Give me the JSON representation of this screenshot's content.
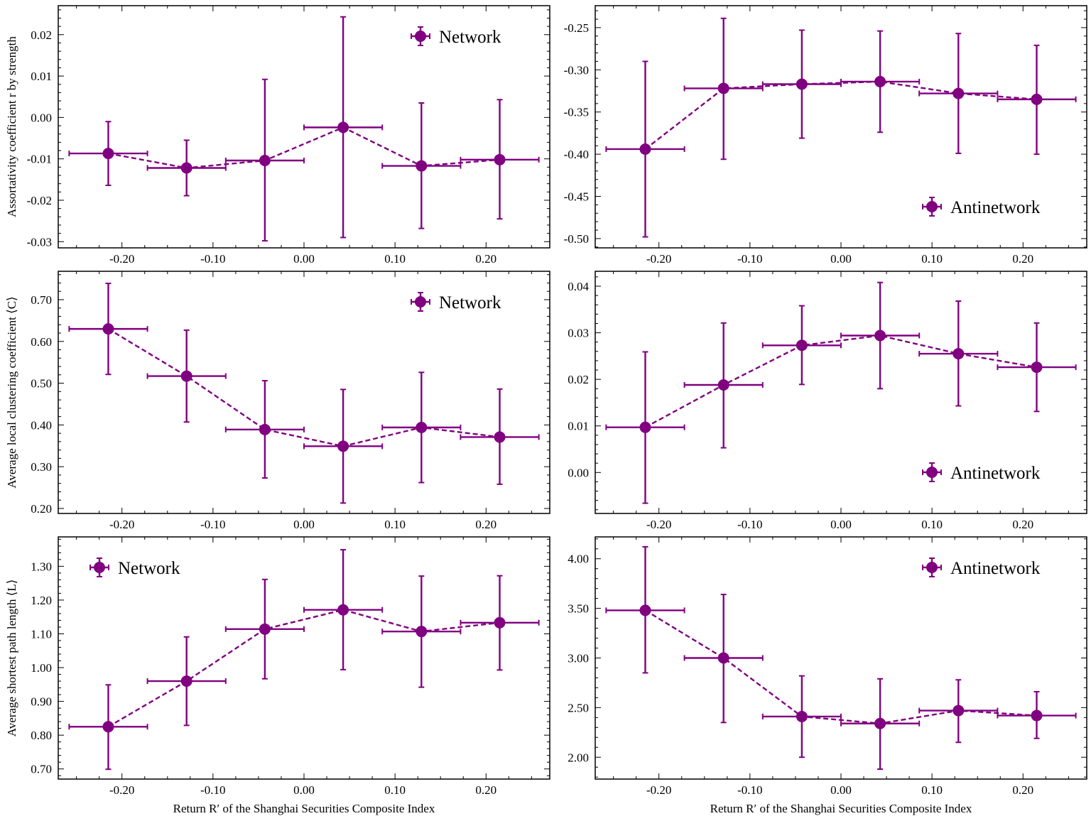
{
  "chart_data": [
    {
      "type": "scatter",
      "x": [
        -0.215,
        -0.129,
        -0.043,
        0.043,
        0.129,
        0.215
      ],
      "x_err": 0.043,
      "y": [
        -0.0087,
        -0.0122,
        -0.0104,
        -0.0024,
        -0.0117,
        -0.0102
      ],
      "y_err_low": [
        -0.0164,
        -0.0189,
        -0.0298,
        -0.029,
        -0.0268,
        -0.0245
      ],
      "y_err_high": [
        -0.001,
        -0.0055,
        0.0092,
        0.0243,
        0.0035,
        0.0043
      ],
      "series_name": "Network",
      "legend_position": "top-right",
      "xlabel": "",
      "ylabel": "Assortativity coefficient r by strength",
      "xlim": [
        -0.27,
        0.27
      ],
      "ylim": [
        -0.0315,
        0.027
      ],
      "yticks": [
        -0.03,
        -0.02,
        -0.01,
        0.0,
        0.01,
        0.02
      ],
      "ytick_labels": [
        "-0.03",
        "-0.02",
        "-0.01",
        "0.00",
        "0.01",
        "0.02"
      ]
    },
    {
      "type": "scatter",
      "x": [
        -0.215,
        -0.129,
        -0.043,
        0.043,
        0.129,
        0.215
      ],
      "x_err": 0.043,
      "y": [
        -0.394,
        -0.322,
        -0.317,
        -0.314,
        -0.328,
        -0.335
      ],
      "y_err_low": [
        -0.498,
        -0.406,
        -0.381,
        -0.374,
        -0.399,
        -0.4
      ],
      "y_err_high": [
        -0.29,
        -0.239,
        -0.253,
        -0.254,
        -0.257,
        -0.271
      ],
      "series_name": "Antinetwork",
      "legend_position": "lower-right",
      "xlabel": "",
      "ylabel": "",
      "xlim": [
        -0.27,
        0.27
      ],
      "ylim": [
        -0.511,
        -0.224
      ],
      "yticks": [
        -0.5,
        -0.45,
        -0.4,
        -0.35,
        -0.3,
        -0.25
      ],
      "ytick_labels": [
        "-0.50",
        "-0.45",
        "-0.40",
        "-0.35",
        "-0.30",
        "-0.25"
      ]
    },
    {
      "type": "scatter",
      "x": [
        -0.215,
        -0.129,
        -0.043,
        0.043,
        0.129,
        0.215
      ],
      "x_err": 0.043,
      "y": [
        0.63,
        0.517,
        0.389,
        0.349,
        0.394,
        0.371
      ],
      "y_err_low": [
        0.521,
        0.407,
        0.273,
        0.213,
        0.262,
        0.258
      ],
      "y_err_high": [
        0.739,
        0.627,
        0.506,
        0.485,
        0.526,
        0.486
      ],
      "series_name": "Network",
      "legend_position": "top-right",
      "xlabel": "",
      "ylabel": "Average local clustering coefficient ⟨C⟩",
      "xlim": [
        -0.27,
        0.27
      ],
      "ylim": [
        0.188,
        0.768
      ],
      "yticks": [
        0.2,
        0.3,
        0.4,
        0.5,
        0.6,
        0.7
      ],
      "ytick_labels": [
        "0.20",
        "0.30",
        "0.40",
        "0.50",
        "0.60",
        "0.70"
      ]
    },
    {
      "type": "scatter",
      "x": [
        -0.215,
        -0.129,
        -0.043,
        0.043,
        0.129,
        0.215
      ],
      "x_err": 0.043,
      "y": [
        0.0097,
        0.0188,
        0.0273,
        0.0294,
        0.0255,
        0.0226
      ],
      "y_err_low": [
        -0.0066,
        0.0053,
        0.0189,
        0.018,
        0.0143,
        0.0131
      ],
      "y_err_high": [
        0.0259,
        0.0321,
        0.0358,
        0.0408,
        0.0368,
        0.0321
      ],
      "series_name": "Antinetwork",
      "legend_position": "lower-right",
      "xlabel": "",
      "ylabel": "",
      "xlim": [
        -0.27,
        0.27
      ],
      "ylim": [
        -0.0088,
        0.0432
      ],
      "yticks": [
        0.0,
        0.01,
        0.02,
        0.03,
        0.04
      ],
      "ytick_labels": [
        "0.00",
        "0.01",
        "0.02",
        "0.03",
        "0.04"
      ]
    },
    {
      "type": "scatter",
      "x": [
        -0.215,
        -0.129,
        -0.043,
        0.043,
        0.129,
        0.215
      ],
      "x_err": 0.043,
      "y": [
        0.825,
        0.96,
        1.114,
        1.171,
        1.107,
        1.133
      ],
      "y_err_low": [
        0.699,
        0.829,
        0.967,
        0.994,
        0.942,
        0.993
      ],
      "y_err_high": [
        0.949,
        1.091,
        1.261,
        1.349,
        1.271,
        1.272
      ],
      "series_name": "Network",
      "legend_position": "top-left",
      "xlabel": "Return R′ of the Shanghai Securities Composite Index",
      "ylabel": "Average shortest path length ⟨L⟩",
      "xlim": [
        -0.27,
        0.27
      ],
      "ylim": [
        0.67,
        1.387
      ],
      "yticks": [
        0.7,
        0.8,
        0.9,
        1.0,
        1.1,
        1.2,
        1.3
      ],
      "ytick_labels": [
        "0.70",
        "0.80",
        "0.90",
        "1.00",
        "1.10",
        "1.20",
        "1.30"
      ]
    },
    {
      "type": "scatter",
      "x": [
        -0.215,
        -0.129,
        -0.043,
        0.043,
        0.129,
        0.215
      ],
      "x_err": 0.043,
      "y": [
        3.48,
        3.0,
        2.41,
        2.34,
        2.47,
        2.42
      ],
      "y_err_low": [
        2.85,
        2.35,
        2.0,
        1.88,
        2.15,
        2.19
      ],
      "y_err_high": [
        4.12,
        3.64,
        2.82,
        2.79,
        2.78,
        2.66
      ],
      "series_name": "Antinetwork",
      "legend_position": "top-right",
      "xlabel": "Return R′ of the Shanghai Securities Composite Index",
      "ylabel": "",
      "xlim": [
        -0.27,
        0.27
      ],
      "ylim": [
        1.78,
        4.22
      ],
      "yticks": [
        2.0,
        2.5,
        3.0,
        3.5,
        4.0
      ],
      "ytick_labels": [
        "2.00",
        "2.50",
        "3.00",
        "3.50",
        "4.00"
      ]
    }
  ],
  "shared_xticks": [
    -0.2,
    -0.1,
    0.0,
    0.1,
    0.2
  ],
  "shared_xtick_labels": [
    "-0.20",
    "-0.10",
    "0.00",
    "0.10",
    "0.20"
  ],
  "colors": {
    "series": "#800080",
    "axes": "#000000"
  }
}
